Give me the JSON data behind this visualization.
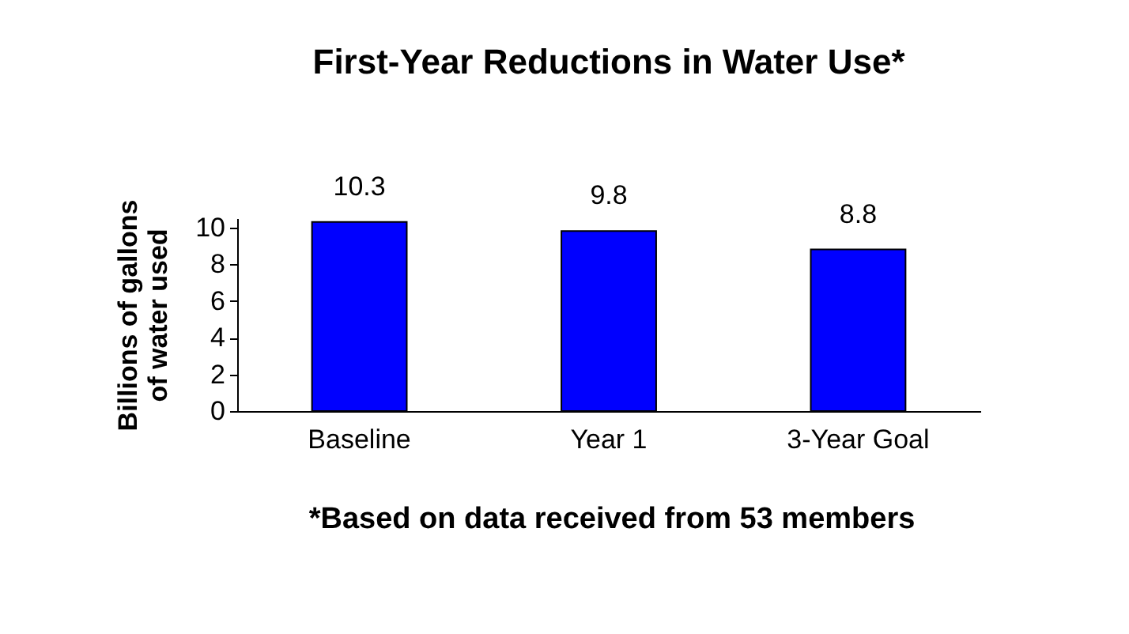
{
  "chart_data": {
    "type": "bar",
    "title": "First-Year Reductions in Water Use*",
    "ylabel": "Billions of gallons\nof water used",
    "categories": [
      "Baseline",
      "Year 1",
      "3-Year Goal"
    ],
    "series": [
      {
        "color": "#0000ff",
        "values": [
          10.3,
          9.8,
          8.8
        ]
      }
    ],
    "ylim": [
      0,
      10.5
    ],
    "yticks": [
      0,
      2,
      4,
      6,
      8,
      10
    ],
    "data_labels": true,
    "grid": false,
    "annotations": [
      "*Based on data received from 53 members"
    ]
  }
}
